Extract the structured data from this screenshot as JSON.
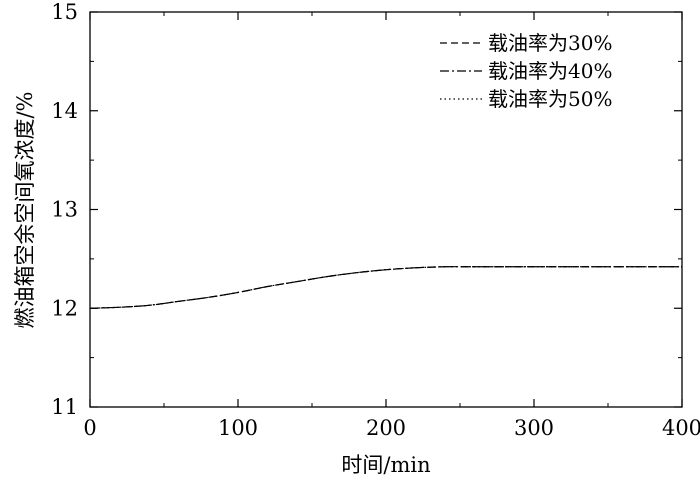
{
  "chart_data": {
    "type": "line",
    "xlabel": "时间/min",
    "ylabel": "燃油箱空余空间氧浓度/%",
    "xlim": [
      0,
      400
    ],
    "ylim": [
      11,
      15
    ],
    "x_ticks": [
      0,
      100,
      200,
      300,
      400
    ],
    "y_ticks": [
      11,
      12,
      13,
      14,
      15
    ],
    "legend_position": "top-right",
    "grid": false,
    "series": [
      {
        "name": "载油率为30%",
        "line_style": "dashed",
        "x": [
          0,
          20,
          40,
          60,
          80,
          100,
          120,
          140,
          160,
          180,
          200,
          220,
          240,
          260,
          300,
          350,
          400
        ],
        "y": [
          12.0,
          12.01,
          12.03,
          12.07,
          12.11,
          12.16,
          12.22,
          12.27,
          12.32,
          12.36,
          12.39,
          12.41,
          12.42,
          12.42,
          12.42,
          12.42,
          12.42
        ]
      },
      {
        "name": "载油率为40%",
        "line_style": "dashdot",
        "x": [
          0,
          20,
          40,
          60,
          80,
          100,
          120,
          140,
          160,
          180,
          200,
          220,
          240,
          260,
          300,
          350,
          400
        ],
        "y": [
          12.0,
          12.01,
          12.03,
          12.07,
          12.11,
          12.16,
          12.22,
          12.27,
          12.32,
          12.36,
          12.39,
          12.41,
          12.42,
          12.42,
          12.42,
          12.42,
          12.42
        ]
      },
      {
        "name": "载油率为50%",
        "line_style": "dotted",
        "x": [
          0,
          20,
          40,
          60,
          80,
          100,
          120,
          140,
          160,
          180,
          200,
          220,
          240,
          260,
          300,
          350,
          400
        ],
        "y": [
          12.0,
          12.01,
          12.03,
          12.07,
          12.11,
          12.16,
          12.22,
          12.27,
          12.32,
          12.36,
          12.39,
          12.41,
          12.42,
          12.42,
          12.42,
          12.42,
          12.42
        ]
      }
    ]
  }
}
